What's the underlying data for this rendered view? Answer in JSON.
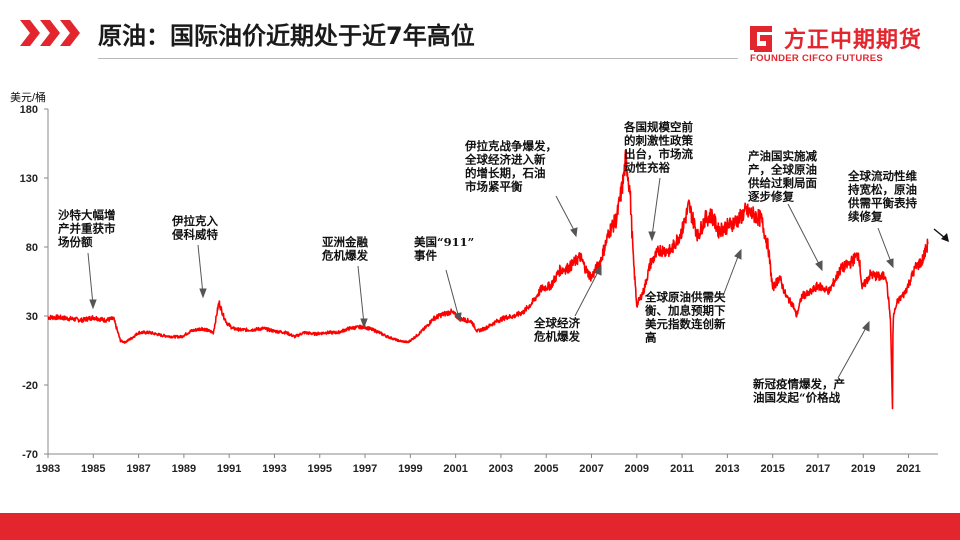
{
  "slide": {
    "title": "原油：国际油价近期处于近7年高位",
    "brand": {
      "name_cn": "方正中期期货",
      "name_en": "FOUNDER CIFCO FUTURES",
      "accent": "#e3262e"
    }
  },
  "chart_data": {
    "type": "line",
    "ylabel": "美元/桶",
    "ylim": [
      -70,
      180
    ],
    "yticks": [
      180,
      130,
      80,
      30,
      -20,
      -70
    ],
    "xlim": [
      1983,
      2022.3
    ],
    "xticks": [
      "1983",
      "1985",
      "1987",
      "1989",
      "1991",
      "1993",
      "1995",
      "1997",
      "1999",
      "2001",
      "2003",
      "2005",
      "2007",
      "2009",
      "2011",
      "2013",
      "2015",
      "2017",
      "2019",
      "2021"
    ],
    "grid": false,
    "line_color": "#ff0000",
    "series": [
      {
        "x": [
          1983.0,
          1983.5,
          1984.0,
          1984.5,
          1985.0,
          1985.5,
          1985.9,
          1986.2,
          1986.4,
          1986.7,
          1987.0,
          1987.5,
          1988.0,
          1988.5,
          1988.9,
          1989.3,
          1989.8,
          1990.3,
          1990.55,
          1990.75,
          1990.9,
          1991.15,
          1991.5,
          1992.0,
          1992.5,
          1993.0,
          1993.5,
          1993.9,
          1994.3,
          1994.8,
          1995.3,
          1995.8,
          1996.3,
          1996.8,
          1997.0,
          1997.5,
          1998.0,
          1998.5,
          1998.9,
          1999.3,
          1999.7,
          2000.0,
          2000.4,
          2000.8,
          2001.2,
          2001.7,
          2001.95,
          2002.3,
          2002.8,
          2003.2,
          2003.6,
          2004.0,
          2004.4,
          2004.8,
          2005.2,
          2005.6,
          2006.0,
          2006.5,
          2006.8,
          2007.0,
          2007.4,
          2007.8,
          2008.1,
          2008.4,
          2008.52,
          2008.7,
          2008.85,
          2009.0,
          2009.3,
          2009.6,
          2010.0,
          2010.5,
          2011.0,
          2011.3,
          2011.7,
          2012.0,
          2012.3,
          2012.6,
          2013.0,
          2013.5,
          2013.8,
          2014.2,
          2014.5,
          2014.8,
          2015.0,
          2015.3,
          2015.6,
          2015.9,
          2016.05,
          2016.3,
          2016.6,
          2017.0,
          2017.5,
          2018.0,
          2018.4,
          2018.8,
          2018.95,
          2019.3,
          2019.8,
          2020.0,
          2020.2,
          2020.29,
          2020.31,
          2020.33,
          2020.5,
          2020.8,
          2021.0,
          2021.3,
          2021.6,
          2021.85
        ],
        "values": [
          29,
          29,
          28,
          27,
          29,
          27,
          28,
          12,
          11,
          14,
          18,
          18,
          16,
          15,
          15,
          19,
          21,
          18,
          40,
          30,
          25,
          21,
          20,
          20,
          21,
          19,
          18,
          15,
          18,
          17,
          18,
          18,
          21,
          22,
          22,
          19,
          15,
          12,
          11,
          16,
          22,
          28,
          31,
          33,
          28,
          26,
          19,
          21,
          26,
          29,
          30,
          33,
          40,
          50,
          52,
          63,
          65,
          73,
          62,
          58,
          70,
          92,
          100,
          128,
          145,
          120,
          70,
          38,
          48,
          68,
          78,
          77,
          92,
          110,
          88,
          100,
          103,
          92,
          95,
          100,
          106,
          103,
          100,
          80,
          50,
          58,
          44,
          38,
          30,
          45,
          46,
          52,
          48,
          64,
          68,
          75,
          50,
          60,
          58,
          60,
          28,
          -37,
          15,
          30,
          40,
          46,
          53,
          65,
          70,
          82
        ]
      }
    ],
    "annotations": [
      {
        "text": [
          "沙特大幅增",
          "产并重获市",
          "场份额"
        ]
      },
      {
        "text": [
          "伊拉克入",
          "侵科威特"
        ]
      },
      {
        "text": [
          "亚洲金融",
          "危机爆发"
        ]
      },
      {
        "text": [
          "美国“911”",
          "事件"
        ]
      },
      {
        "text": [
          "伊拉克战争爆发，",
          "全球经济进入新",
          "的增长期，石油",
          "市场紧平衡"
        ]
      },
      {
        "text": [
          "全球经济",
          "危机爆发"
        ]
      },
      {
        "text": [
          "各国规模空前",
          "的刺激性政策",
          "出台，市场流",
          "动性充裕"
        ]
      },
      {
        "text": [
          "全球原油供需失",
          "衡、加息预期下",
          "美元指数连创新",
          "高"
        ]
      },
      {
        "text": [
          "产油国实施减",
          "产，全球原油",
          "供给过剩局面",
          "逐步修复"
        ]
      },
      {
        "text": [
          "全球流动性维",
          "持宽松，原油",
          "供需平衡表持",
          "续修复"
        ]
      },
      {
        "text": [
          "新冠疫情爆发，产",
          "油国发起“价格战"
        ]
      }
    ]
  }
}
